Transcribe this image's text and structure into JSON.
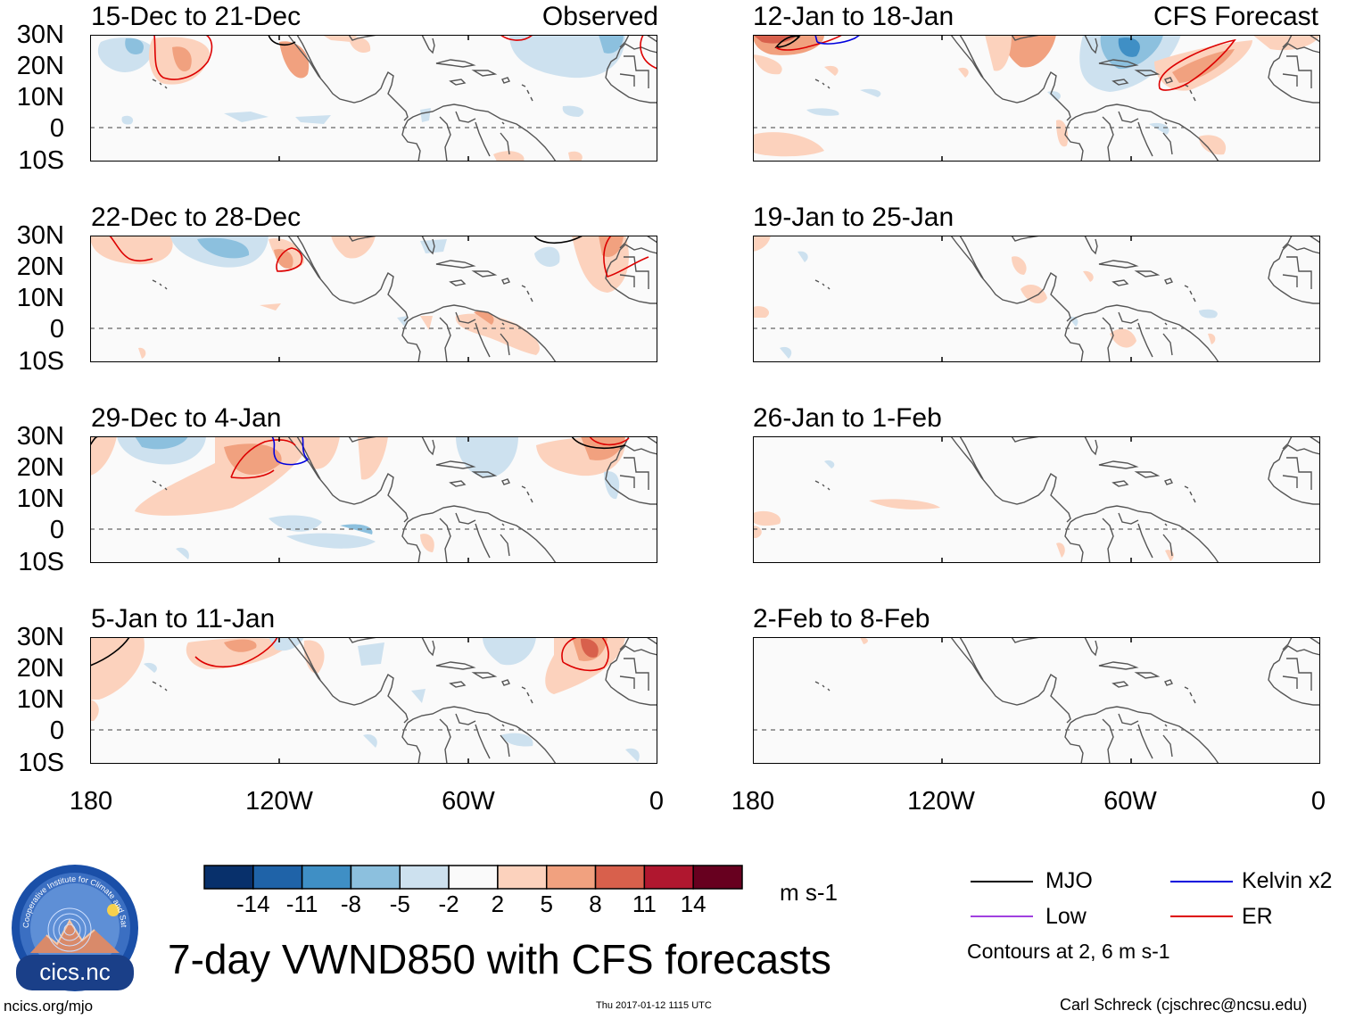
{
  "panels": {
    "p1": {
      "title": "15-Dec to 21-Dec",
      "tag": "Observed"
    },
    "p2": {
      "title": "22-Dec to 28-Dec"
    },
    "p3": {
      "title": "29-Dec to 4-Jan"
    },
    "p4": {
      "title": "5-Jan to 11-Jan"
    },
    "p5": {
      "title": "12-Jan to 18-Jan",
      "tag": "CFS Forecast"
    },
    "p6": {
      "title": "19-Jan to 25-Jan"
    },
    "p7": {
      "title": "26-Jan to 1-Feb"
    },
    "p8": {
      "title": "2-Feb to 8-Feb"
    }
  },
  "lat_ticks": [
    "30N",
    "20N",
    "10N",
    "0",
    "10S"
  ],
  "lon_ticks": [
    "180",
    "120W",
    "60W",
    "0"
  ],
  "colorbar": {
    "labels": [
      "-14",
      "-11",
      "-8",
      "-5",
      "-2",
      "2",
      "5",
      "8",
      "11",
      "14"
    ],
    "colors": [
      "#08306b",
      "#1f63a8",
      "#3f8fc5",
      "#8cc0de",
      "#cde1ef",
      "#fafafa",
      "#fcd2bd",
      "#f1a17f",
      "#d8604c",
      "#b0172f",
      "#67001f"
    ],
    "units": "m s-1"
  },
  "legend": {
    "mjo": {
      "label": "MJO",
      "color": "#000000"
    },
    "kelvin": {
      "label": "Kelvin x2",
      "color": "#0000dd"
    },
    "low": {
      "label": "Low",
      "color": "#a040e0"
    },
    "er": {
      "label": "ER",
      "color": "#dd0000"
    },
    "contours_note": "Contours at 2, 6 m s-1"
  },
  "logo": {
    "text": "cics.nc",
    "ring_text": "Cooperative Institute for Climate and Satellites"
  },
  "main_title": "7-day VWND850 with CFS forecasts",
  "footer": {
    "site": "ncics.org/mjo",
    "timestamp": "Thu 2017-01-12 1115 UTC",
    "author": "Carl Schreck (cjschrec@ncsu.edu)"
  }
}
